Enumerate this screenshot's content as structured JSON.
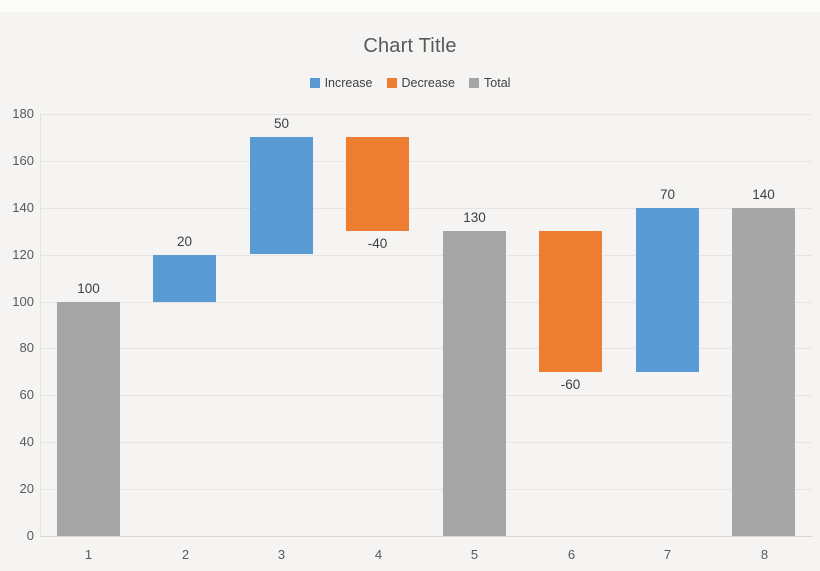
{
  "chart": {
    "title": "Chart Title"
  },
  "chart_data": {
    "type": "bar",
    "subtype": "waterfall",
    "title": "Chart Title",
    "categories": [
      "1",
      "2",
      "3",
      "4",
      "5",
      "6",
      "7",
      "8"
    ],
    "legend": [
      {
        "label": "Increase",
        "color": "#5B9BD5"
      },
      {
        "label": "Decrease",
        "color": "#ED7D31"
      },
      {
        "label": "Total",
        "color": "#A6A6A6"
      }
    ],
    "legend_position": "top",
    "grid": true,
    "xlabel": "",
    "ylabel": "",
    "ylim": [
      0,
      180
    ],
    "ytick_interval": 20,
    "yticks": [
      0,
      20,
      40,
      60,
      80,
      100,
      120,
      140,
      160,
      180
    ],
    "points": [
      {
        "category": "1",
        "series": "Total",
        "value": 100,
        "start": 0,
        "end": 100,
        "label": "100"
      },
      {
        "category": "2",
        "series": "Increase",
        "value": 20,
        "start": 100,
        "end": 120,
        "label": "20"
      },
      {
        "category": "3",
        "series": "Increase",
        "value": 50,
        "start": 120,
        "end": 170,
        "label": "50"
      },
      {
        "category": "4",
        "series": "Decrease",
        "value": -40,
        "start": 170,
        "end": 130,
        "label": "-40"
      },
      {
        "category": "5",
        "series": "Total",
        "value": 130,
        "start": 0,
        "end": 130,
        "label": "130"
      },
      {
        "category": "6",
        "series": "Decrease",
        "value": -60,
        "start": 130,
        "end": 70,
        "label": "-60"
      },
      {
        "category": "7",
        "series": "Increase",
        "value": 70,
        "start": 70,
        "end": 140,
        "label": "70"
      },
      {
        "category": "8",
        "series": "Total",
        "value": 140,
        "start": 0,
        "end": 140,
        "label": "140"
      }
    ],
    "colors": {
      "Increase": "#5B9BD5",
      "Decrease": "#ED7D31",
      "Total": "#A6A6A6"
    }
  }
}
